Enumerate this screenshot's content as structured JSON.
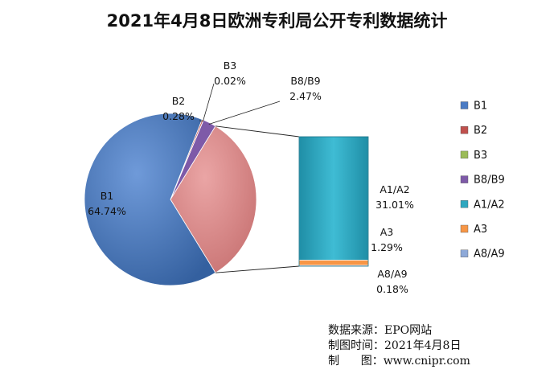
{
  "title": "2021年4月8日欧洲专利局公开专利数据统计",
  "chart_data": {
    "type": "pie",
    "subtype": "pie-of-bar",
    "title": "2021年4月8日欧洲专利局公开专利数据统计",
    "categories": [
      "B1",
      "B2",
      "B3",
      "B8/B9",
      "A1/A2",
      "A3",
      "A8/A9"
    ],
    "values": [
      64.74,
      0.28,
      0.02,
      2.47,
      31.01,
      1.29,
      0.18
    ],
    "value_labels": [
      "64.74%",
      "0.28%",
      "0.02%",
      "2.47%",
      "31.01%",
      "1.29%",
      "0.18%"
    ],
    "unit": "%",
    "pie_categories": [
      "B1",
      "B2",
      "B3",
      "B8/B9"
    ],
    "bar_categories": [
      "A1/A2",
      "A3",
      "A8/A9"
    ],
    "colors": {
      "B1": "#4a7bc4",
      "B2": "#c0504d",
      "B3": "#9bbb59",
      "B8/B9": "#7e5aa8",
      "A1/A2": "#2fa7bf",
      "A3": "#f79646",
      "A8/A9": "#8ea9d8",
      "bar_group": "#e29494"
    },
    "legend": {
      "position": "right",
      "items": [
        "B1",
        "B2",
        "B3",
        "B8/B9",
        "A1/A2",
        "A3",
        "A8/A9"
      ]
    }
  },
  "source": {
    "line1": "数据来源：EPO网站",
    "line2": "制图时间：2021年4月8日",
    "line3": "制      图：www.cnipr.com"
  }
}
